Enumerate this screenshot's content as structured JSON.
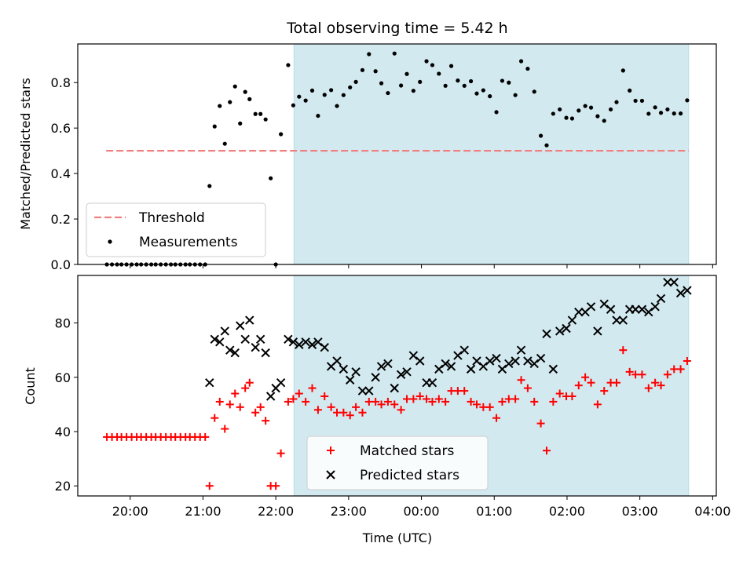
{
  "chart_data": {
    "type": "scatter",
    "title": "Total observing time = 5.42 h",
    "xlabel": "Time (UTC)",
    "x_unit": "hours UTC on a continuous clock (values past 24 are after midnight)",
    "xlim": [
      19.28,
      28.05
    ],
    "x_ticks": [
      {
        "value": 20,
        "label": "20:00"
      },
      {
        "value": 21,
        "label": "21:00"
      },
      {
        "value": 22,
        "label": "22:00"
      },
      {
        "value": 23,
        "label": "23:00"
      },
      {
        "value": 24,
        "label": "00:00"
      },
      {
        "value": 25,
        "label": "01:00"
      },
      {
        "value": 26,
        "label": "02:00"
      },
      {
        "value": 27,
        "label": "03:00"
      },
      {
        "value": 28,
        "label": "04:00"
      }
    ],
    "observing_window": {
      "start": 22.25,
      "end": 27.67,
      "color": "#d3e9f0"
    },
    "panels": [
      {
        "ylabel": "Matched/Predicted stars",
        "ylim": [
          0,
          0.97
        ],
        "y_ticks": [
          {
            "value": 0.0,
            "label": "0.0"
          },
          {
            "value": 0.2,
            "label": "0.2"
          },
          {
            "value": 0.4,
            "label": "0.4"
          },
          {
            "value": 0.6,
            "label": "0.6"
          },
          {
            "value": 0.8,
            "label": "0.8"
          }
        ],
        "threshold": {
          "name": "Threshold",
          "value": 0.5,
          "x_range": [
            19.67,
            27.67
          ],
          "color": "#f08080"
        },
        "legend": {
          "placement": "lower-left",
          "entries": [
            "Threshold",
            "Measurements"
          ]
        },
        "series": [
          {
            "name": "Measurements",
            "marker": "dot",
            "color": "#000000",
            "x": [
              19.68,
              19.75,
              19.82,
              19.88,
              19.95,
              20.02,
              20.09,
              20.15,
              20.22,
              20.29,
              20.35,
              20.42,
              20.49,
              20.56,
              20.62,
              20.69,
              20.76,
              20.82,
              20.89,
              20.96,
              21.03,
              21.09,
              21.16,
              21.23,
              21.3,
              21.37,
              21.44,
              21.51,
              21.58,
              21.64,
              21.72,
              21.79,
              21.86,
              21.93,
              22.0,
              22.07,
              22.17,
              22.24,
              22.32,
              22.41,
              22.5,
              22.58,
              22.67,
              22.76,
              22.84,
              22.93,
              23.02,
              23.1,
              23.19,
              23.28,
              23.37,
              23.45,
              23.54,
              23.63,
              23.72,
              23.8,
              23.89,
              23.98,
              24.07,
              24.15,
              24.24,
              24.33,
              24.41,
              24.5,
              24.59,
              24.68,
              24.76,
              24.85,
              24.94,
              25.03,
              25.11,
              25.2,
              25.29,
              25.37,
              25.46,
              25.55,
              25.64,
              25.72,
              25.81,
              25.9,
              25.99,
              26.07,
              26.16,
              26.25,
              26.33,
              26.42,
              26.51,
              26.6,
              26.68,
              26.77,
              26.86,
              26.94,
              27.03,
              27.12,
              27.21,
              27.29,
              27.38,
              27.47,
              27.56,
              27.65
            ],
            "values": [
              0.0,
              0.0,
              0.0,
              0.0,
              0.0,
              0.0,
              0.0,
              0.0,
              0.0,
              0.0,
              0.0,
              0.0,
              0.0,
              0.0,
              0.0,
              0.0,
              0.0,
              0.0,
              0.0,
              0.0,
              0.0,
              0.345,
              0.607,
              0.697,
              0.531,
              0.714,
              0.783,
              0.62,
              0.759,
              0.727,
              0.662,
              0.662,
              0.638,
              0.379,
              0.0,
              0.573,
              0.877,
              0.7,
              0.738,
              0.721,
              0.765,
              0.654,
              0.746,
              0.767,
              0.697,
              0.745,
              0.779,
              0.803,
              0.855,
              0.925,
              0.85,
              0.797,
              0.754,
              0.928,
              0.787,
              0.838,
              0.764,
              0.803,
              0.894,
              0.877,
              0.839,
              0.786,
              0.873,
              0.809,
              0.786,
              0.806,
              0.752,
              0.766,
              0.74,
              0.67,
              0.808,
              0.8,
              0.745,
              0.894,
              0.861,
              0.76,
              0.566,
              0.524,
              0.663,
              0.682,
              0.645,
              0.642,
              0.677,
              0.697,
              0.69,
              0.652,
              0.632,
              0.682,
              0.714,
              0.853,
              0.765,
              0.72,
              0.72,
              0.663,
              0.691,
              0.667,
              0.682,
              0.664,
              0.664,
              0.722
            ]
          }
        ]
      },
      {
        "ylabel": "Count",
        "ylim": [
          16.3,
          97.5
        ],
        "y_ticks": [
          {
            "value": 20,
            "label": "20"
          },
          {
            "value": 40,
            "label": "40"
          },
          {
            "value": 60,
            "label": "60"
          },
          {
            "value": 80,
            "label": "80"
          }
        ],
        "legend": {
          "placement": "lower-center",
          "entries": [
            "Matched stars",
            "Predicted stars"
          ]
        },
        "series": [
          {
            "name": "Matched stars",
            "marker": "plus",
            "color": "#ff0000",
            "x": [
              19.68,
              19.75,
              19.82,
              19.88,
              19.95,
              20.02,
              20.09,
              20.15,
              20.22,
              20.29,
              20.35,
              20.42,
              20.49,
              20.56,
              20.62,
              20.69,
              20.76,
              20.82,
              20.89,
              20.96,
              21.03,
              21.09,
              21.16,
              21.23,
              21.3,
              21.37,
              21.44,
              21.51,
              21.58,
              21.64,
              21.72,
              21.79,
              21.86,
              21.93,
              22.0,
              22.07,
              22.17,
              22.24,
              22.32,
              22.41,
              22.5,
              22.58,
              22.67,
              22.76,
              22.84,
              22.93,
              23.02,
              23.1,
              23.19,
              23.28,
              23.37,
              23.45,
              23.54,
              23.63,
              23.72,
              23.8,
              23.89,
              23.98,
              24.07,
              24.15,
              24.24,
              24.33,
              24.41,
              24.5,
              24.59,
              24.68,
              24.76,
              24.85,
              24.94,
              25.03,
              25.11,
              25.2,
              25.29,
              25.37,
              25.46,
              25.55,
              25.64,
              25.72,
              25.81,
              25.9,
              25.99,
              26.07,
              26.16,
              26.25,
              26.33,
              26.42,
              26.51,
              26.6,
              26.68,
              26.77,
              26.86,
              26.94,
              27.03,
              27.12,
              27.21,
              27.29,
              27.38,
              27.47,
              27.56,
              27.65
            ],
            "values": [
              38,
              38,
              38,
              38,
              38,
              38,
              38,
              38,
              38,
              38,
              38,
              38,
              38,
              38,
              38,
              38,
              38,
              38,
              38,
              38,
              38,
              20,
              45,
              51,
              41,
              50,
              54,
              49,
              56,
              58,
              47,
              49,
              44,
              20,
              20,
              32,
              51,
              52,
              54,
              51,
              56,
              48,
              53,
              49,
              47,
              47,
              46,
              49,
              47,
              51,
              51,
              50,
              51,
              50,
              48,
              52,
              52,
              53,
              52,
              51,
              52,
              51,
              55,
              55,
              55,
              51,
              50,
              49,
              49,
              45,
              51,
              52,
              52,
              59,
              56,
              51,
              43,
              33,
              51,
              54,
              53,
              53,
              57,
              60,
              58,
              50,
              55,
              58,
              58,
              70,
              62,
              61,
              61,
              56,
              58,
              57,
              61,
              63,
              63,
              66
            ]
          },
          {
            "name": "Predicted stars",
            "marker": "cross",
            "color": "#000000",
            "x": [
              21.09,
              21.16,
              21.23,
              21.3,
              21.37,
              21.44,
              21.51,
              21.58,
              21.64,
              21.72,
              21.79,
              21.86,
              21.93,
              22.0,
              22.07,
              22.17,
              22.24,
              22.32,
              22.41,
              22.5,
              22.58,
              22.67,
              22.76,
              22.84,
              22.93,
              23.02,
              23.1,
              23.19,
              23.28,
              23.37,
              23.45,
              23.54,
              23.63,
              23.72,
              23.8,
              23.89,
              23.98,
              24.07,
              24.15,
              24.24,
              24.33,
              24.41,
              24.5,
              24.59,
              24.68,
              24.76,
              24.85,
              24.94,
              25.03,
              25.11,
              25.2,
              25.29,
              25.37,
              25.46,
              25.55,
              25.64,
              25.72,
              25.81,
              25.9,
              25.99,
              26.07,
              26.16,
              26.25,
              26.33,
              26.42,
              26.51,
              26.6,
              26.68,
              26.77,
              26.86,
              26.94,
              27.03,
              27.12,
              27.21,
              27.29,
              27.38,
              27.47,
              27.56,
              27.65
            ],
            "values": [
              58,
              74,
              73,
              77,
              70,
              69,
              79,
              74,
              81,
              71,
              74,
              69,
              53,
              56,
              58,
              74,
              73,
              72,
              73,
              72,
              73,
              71,
              64,
              66,
              63,
              59,
              62,
              55,
              55,
              60,
              64,
              65,
              56,
              61,
              62,
              68,
              66,
              58,
              58,
              63,
              65,
              64,
              68,
              70,
              63,
              66,
              64,
              66,
              67,
              63,
              65,
              66,
              70,
              66,
              65,
              67,
              76,
              63,
              77,
              78,
              81,
              84,
              84,
              86,
              77,
              87,
              85,
              81,
              81,
              85,
              85,
              85,
              84,
              86,
              89,
              95,
              95,
              91,
              92
            ]
          }
        ]
      }
    ]
  }
}
